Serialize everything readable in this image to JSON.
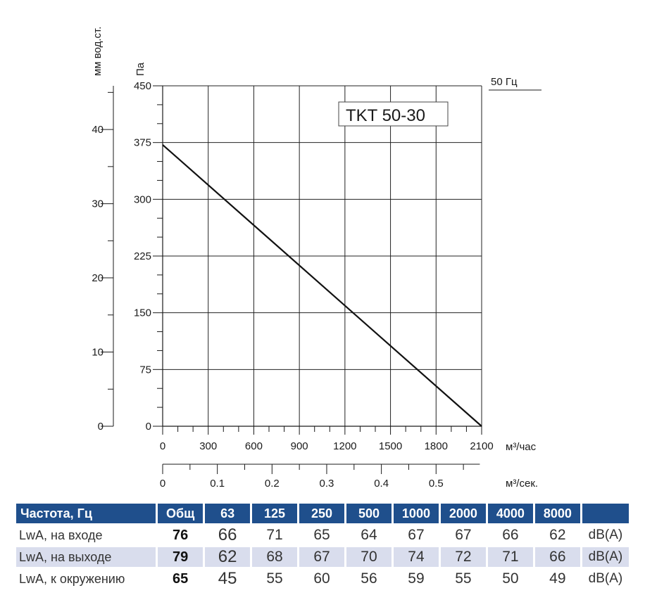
{
  "chart_data": {
    "type": "line",
    "title": "TKT 50-30",
    "frequency_label": "50 Гц",
    "y_left_outer_label": "мм вод.ст.",
    "y_left_outer_ticks": [
      0,
      10,
      20,
      30,
      40
    ],
    "y_label": "Па",
    "y_ticks": [
      0,
      75,
      150,
      225,
      300,
      375,
      450
    ],
    "ylim": [
      0,
      450
    ],
    "x_label": "м³/час",
    "x_ticks": [
      0,
      300,
      600,
      900,
      1200,
      1500,
      1800,
      2100
    ],
    "xlim": [
      0,
      2100
    ],
    "x2_label": "м³/сек.",
    "x2_ticks": [
      "0",
      "0.1",
      "0.2",
      "0.3",
      "0.4",
      "0.5"
    ],
    "grid": true,
    "series": [
      {
        "x": [
          0,
          2100
        ],
        "y": [
          372,
          0
        ]
      }
    ]
  },
  "table": {
    "headers": [
      "Частота, Гц",
      "Общ",
      "63",
      "125",
      "250",
      "500",
      "1000",
      "2000",
      "4000",
      "8000",
      ""
    ],
    "rows": [
      {
        "label": "LwA, на входе",
        "total": "76",
        "values": [
          "66",
          "71",
          "65",
          "64",
          "67",
          "67",
          "66",
          "62"
        ],
        "unit": "dB(A)"
      },
      {
        "label": "LwA, на выходе",
        "total": "79",
        "values": [
          "62",
          "68",
          "67",
          "70",
          "74",
          "72",
          "71",
          "66"
        ],
        "unit": "dB(A)"
      },
      {
        "label": "LwA, к окружению",
        "total": "65",
        "values": [
          "45",
          "55",
          "60",
          "56",
          "59",
          "55",
          "50",
          "49"
        ],
        "unit": "dB(A)"
      }
    ]
  }
}
